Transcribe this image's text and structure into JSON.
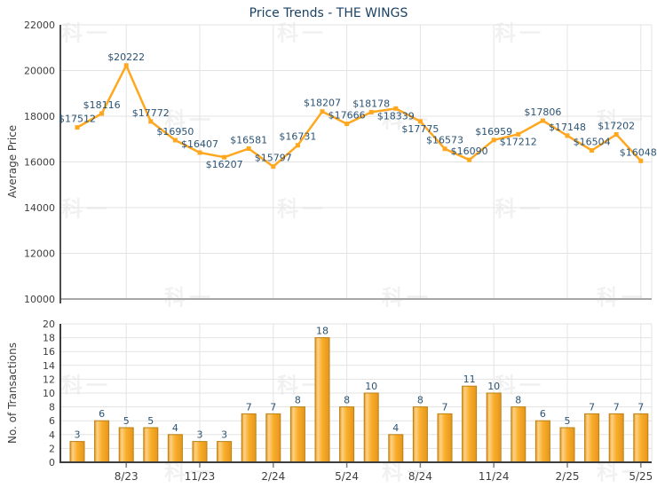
{
  "page": {
    "title": "Price Trends - THE WINGS"
  },
  "watermark": {
    "text": "科一"
  },
  "colors": {
    "line": "#FFA71E",
    "bar_main": "#F9AE2B",
    "bar_highlight": "#FDD186",
    "bar_edge_dark": "#E6961C",
    "bar_border": "#B98114",
    "data_label": "#2B5374",
    "title_text": "#1A4265",
    "axis_text": "#3F3F3F",
    "gridline": "#E3E3E3",
    "axis_line_dark": "#3E3E3E",
    "axis_line_medium": "#A8A8A8"
  },
  "chart_data": [
    {
      "type": "line",
      "title": "Price Trends - THE WINGS",
      "ylabel": "Average Price",
      "ylim": [
        10000,
        22000
      ],
      "ytick_step": 2000,
      "ytick_labels": [
        "10000",
        "12000",
        "14000",
        "16000",
        "18000",
        "20000",
        "22000"
      ],
      "grid": true,
      "legend": "none",
      "x_count": 24,
      "x_tick_labels": [
        "8/23",
        "11/23",
        "2/24",
        "5/24",
        "8/24",
        "11/24",
        "2/25",
        "5/25"
      ],
      "x_tick_indices": [
        2,
        5,
        8,
        11,
        14,
        17,
        20,
        23
      ],
      "values": [
        17512,
        18116,
        20222,
        17772,
        16950,
        16407,
        16207,
        16581,
        15797,
        16731,
        18207,
        17666,
        18178,
        18339,
        17775,
        16573,
        16090,
        16959,
        17212,
        17806,
        17148,
        16504,
        17202,
        16048
      ],
      "point_labels": [
        "$17512",
        "$18116",
        "$20222",
        "$17772",
        "$16950",
        "$16407",
        "$16207",
        "$16581",
        "$15797",
        "$16731",
        "$18207",
        "$17666",
        "$18178",
        "$18339",
        "$17775",
        "$16573",
        "$16090",
        "$16959",
        "$17212",
        "$17806",
        "$17148",
        "$16504",
        "$17202",
        "$16048"
      ],
      "labels_below_indices": [
        6,
        13,
        14,
        18
      ]
    },
    {
      "type": "bar",
      "ylabel": "No. of Transactions",
      "ylim": [
        0,
        20
      ],
      "ytick_step": 2,
      "ytick_labels": [
        "0",
        "2",
        "4",
        "6",
        "8",
        "10",
        "12",
        "14",
        "16",
        "18",
        "20"
      ],
      "grid": true,
      "legend": "none",
      "x_count": 24,
      "x_tick_labels": [
        "8/23",
        "11/23",
        "2/24",
        "5/24",
        "8/24",
        "11/24",
        "2/25",
        "5/25"
      ],
      "x_tick_indices": [
        2,
        5,
        8,
        11,
        14,
        17,
        20,
        23
      ],
      "values": [
        3,
        6,
        5,
        5,
        4,
        3,
        3,
        7,
        7,
        8,
        18,
        8,
        10,
        4,
        8,
        7,
        11,
        10,
        8,
        6,
        5,
        7,
        7,
        7
      ],
      "bar_labels": [
        "3",
        "6",
        "5",
        "5",
        "4",
        "3",
        "3",
        "7",
        "7",
        "8",
        "18",
        "8",
        "10",
        "4",
        "8",
        "7",
        "11",
        "10",
        "8",
        "6",
        "5",
        "7",
        "7",
        "7"
      ]
    }
  ]
}
